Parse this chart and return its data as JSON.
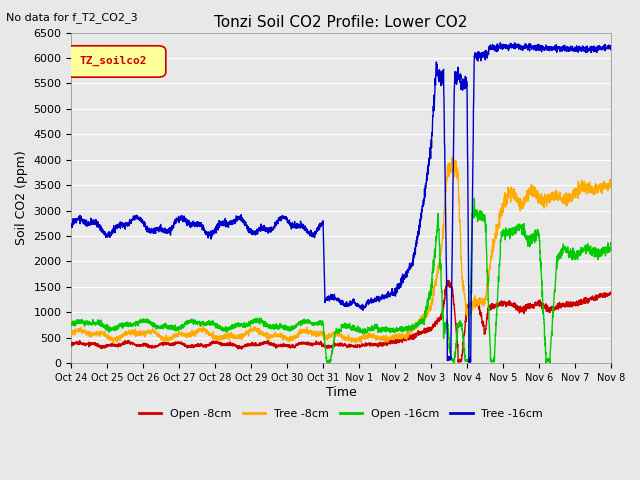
{
  "title": "Tonzi Soil CO2 Profile: Lower CO2",
  "subtitle": "No data for f_T2_CO2_3",
  "xlabel": "Time",
  "ylabel": "Soil CO2 (ppm)",
  "ylim": [
    0,
    6500
  ],
  "legend_label": "TZ_soilco2",
  "x_tick_labels": [
    "Oct 24",
    "Oct 25",
    "Oct 26",
    "Oct 27",
    "Oct 28",
    "Oct 29",
    "Oct 30",
    "Oct 31",
    "Nov 1",
    "Nov 2",
    "Nov 3",
    "Nov 4",
    "Nov 5",
    "Nov 6",
    "Nov 7",
    "Nov 8"
  ],
  "series": {
    "open_8cm": {
      "color": "#cc0000",
      "label": "Open -8cm"
    },
    "tree_8cm": {
      "color": "#ffaa00",
      "label": "Tree -8cm"
    },
    "open_16cm": {
      "color": "#00cc00",
      "label": "Open -16cm"
    },
    "tree_16cm": {
      "color": "#0000cc",
      "label": "Tree -16cm"
    }
  },
  "background_color": "#e8e8e8",
  "grid_color": "#ffffff",
  "legend_box_facecolor": "#ffff99",
  "legend_box_edgecolor": "#cc0000",
  "legend_text_color": "#cc0000"
}
